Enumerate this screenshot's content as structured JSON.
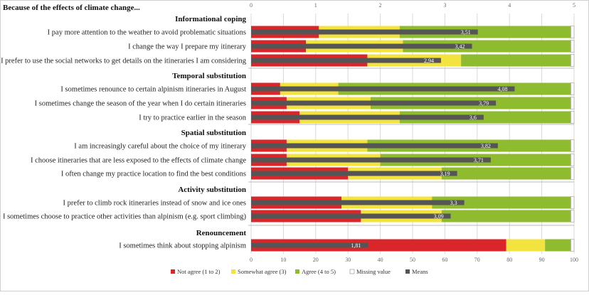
{
  "chart_data": {
    "type": "bar",
    "orientation": "horizontal",
    "stacked": true,
    "title": "Because of the effects of climate change...",
    "percent_axis": {
      "range": [
        0,
        100
      ],
      "ticks": [
        "0",
        "10",
        "20",
        "30",
        "40",
        "50",
        "60",
        "70",
        "80",
        "90",
        "100"
      ]
    },
    "means_axis": {
      "range": [
        0,
        5
      ],
      "ticks": [
        "0",
        "1",
        "2",
        "3",
        "4",
        "5"
      ]
    },
    "grid": true,
    "legend_position": "bottom",
    "series": [
      {
        "name": "Not agree (1 to 2)",
        "color": "#d9262a"
      },
      {
        "name": "Somewhat agree (3)",
        "color": "#f2e33f"
      },
      {
        "name": "Agree (4 to 5)",
        "color": "#8fbb2e"
      },
      {
        "name": "Missing value",
        "color": "#ffffff"
      },
      {
        "name": "Means",
        "color": "#555555"
      }
    ],
    "sections": [
      {
        "title": "Informational coping",
        "items": [
          {
            "label": "I pay more attention to the weather to avoid problematic situations",
            "values": [
              21,
              25,
              53,
              1
            ],
            "mean": 3.51,
            "mean_label": "3,51"
          },
          {
            "label": "I change the way I prepare my itinerary",
            "values": [
              17,
              30,
              52,
              1
            ],
            "mean": 3.42,
            "mean_label": "3,42"
          },
          {
            "label": "I prefer to use the social networks to get details on the itineraries I am considering",
            "values": [
              36,
              29,
              34,
              1
            ],
            "mean": 2.94,
            "mean_label": "2,94"
          }
        ]
      },
      {
        "title": "Temporal substitution",
        "items": [
          {
            "label": "I sometimes renounce to certain alpinism itineraries in August",
            "values": [
              9,
              18,
              72,
              1
            ],
            "mean": 4.08,
            "mean_label": "4,08"
          },
          {
            "label": "I sometimes change the season of the year when I do certain itineraries",
            "values": [
              11,
              26,
              62,
              1
            ],
            "mean": 3.79,
            "mean_label": "3,79"
          },
          {
            "label": "I try to practice earlier in the season",
            "values": [
              15,
              31,
              53,
              1
            ],
            "mean": 3.6,
            "mean_label": "3,6"
          }
        ]
      },
      {
        "title": "Spatial substitution",
        "items": [
          {
            "label": "I am increasingly careful about the choice of my itinerary",
            "values": [
              11,
              25,
              63,
              1
            ],
            "mean": 3.82,
            "mean_label": "3,82"
          },
          {
            "label": "I choose itineraries that are less exposed to the effects of climate change",
            "values": [
              11,
              29,
              59,
              1
            ],
            "mean": 3.71,
            "mean_label": "3,71"
          },
          {
            "label": "I often change my practice location to find the best conditions",
            "values": [
              30,
              29,
              40,
              1
            ],
            "mean": 3.19,
            "mean_label": "3,19"
          }
        ]
      },
      {
        "title": "Activity substitution",
        "items": [
          {
            "label": "I prefer to climb rock itineraries instead of snow and ice ones",
            "values": [
              28,
              28,
              43,
              1
            ],
            "mean": 3.3,
            "mean_label": "3,3"
          },
          {
            "label": "I sometimes choose to practice other activities than alpinism (e.g. sport climbing)",
            "values": [
              34,
              25,
              40,
              1
            ],
            "mean": 3.09,
            "mean_label": "3,09"
          }
        ]
      },
      {
        "title": "Renouncement",
        "items": [
          {
            "label": "I sometimes think about stopping alpinism",
            "values": [
              79,
              12,
              8,
              1
            ],
            "mean": 1.81,
            "mean_label": "1,81"
          }
        ]
      }
    ]
  }
}
